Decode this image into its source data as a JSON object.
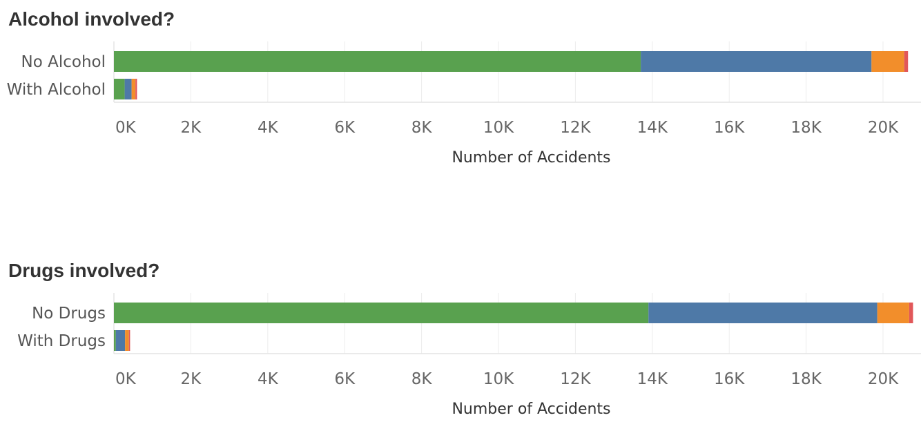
{
  "segment_colors": [
    "#59a14f",
    "#4e79a7",
    "#f28e2b",
    "#e15759"
  ],
  "chart_data": [
    {
      "type": "bar",
      "orientation": "horizontal",
      "stacked": true,
      "title": "Alcohol involved?",
      "categories": [
        "No Alcohol",
        "With Alcohol"
      ],
      "segments": [
        [
          13700,
          6000,
          850,
          100
        ],
        [
          280,
          180,
          100,
          40
        ]
      ],
      "xlabel": "Number of Accidents",
      "xlim": [
        0,
        20700
      ],
      "xticks": [
        0,
        2000,
        4000,
        6000,
        8000,
        10000,
        12000,
        14000,
        16000,
        18000,
        20000
      ],
      "xtick_labels": [
        "0K",
        "2K",
        "4K",
        "6K",
        "8K",
        "10K",
        "12K",
        "14K",
        "16K",
        "18K",
        "20K"
      ],
      "grid": true
    },
    {
      "type": "bar",
      "orientation": "horizontal",
      "stacked": true,
      "title": "Drugs involved?",
      "categories": [
        "No Drugs",
        "With Drugs"
      ],
      "segments": [
        [
          13900,
          5950,
          830,
          100
        ],
        [
          50,
          240,
          100,
          30
        ]
      ],
      "xlabel": "Number of Accidents",
      "xlim": [
        0,
        20700
      ],
      "xticks": [
        0,
        2000,
        4000,
        6000,
        8000,
        10000,
        12000,
        14000,
        16000,
        18000,
        20000
      ],
      "xtick_labels": [
        "0K",
        "2K",
        "4K",
        "6K",
        "8K",
        "10K",
        "12K",
        "14K",
        "16K",
        "18K",
        "20K"
      ],
      "grid": true
    }
  ]
}
